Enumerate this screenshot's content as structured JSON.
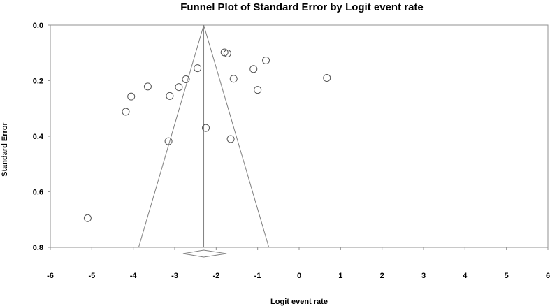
{
  "chart_data": {
    "type": "scatter",
    "title": "Funnel Plot of Standard Error by Logit event rate",
    "xlabel": "Logit event rate",
    "ylabel": "Standard Error",
    "xlim": [
      -6,
      6
    ],
    "ylim": [
      0.0,
      0.8
    ],
    "y_inverted": true,
    "x_ticks": [
      "-6",
      "-5",
      "-4",
      "-3",
      "-2",
      "-1",
      "0",
      "1",
      "2",
      "3",
      "4",
      "5",
      "6"
    ],
    "y_ticks": [
      "0.0",
      "0.2",
      "0.4",
      "0.6",
      "0.8"
    ],
    "grid": false,
    "summary_estimate": -2.3,
    "summary_ci": [
      -2.8,
      -1.75
    ],
    "funnel_bottom": [
      -3.87,
      -0.73
    ],
    "points": [
      {
        "x": -1.8,
        "y": 0.098
      },
      {
        "x": -1.73,
        "y": 0.102
      },
      {
        "x": -0.8,
        "y": 0.127
      },
      {
        "x": -2.45,
        "y": 0.155
      },
      {
        "x": -1.1,
        "y": 0.158
      },
      {
        "x": 0.67,
        "y": 0.19
      },
      {
        "x": -2.73,
        "y": 0.195
      },
      {
        "x": -1.58,
        "y": 0.193
      },
      {
        "x": -3.65,
        "y": 0.221
      },
      {
        "x": -2.9,
        "y": 0.223
      },
      {
        "x": -1.0,
        "y": 0.233
      },
      {
        "x": -4.05,
        "y": 0.257
      },
      {
        "x": -3.12,
        "y": 0.255
      },
      {
        "x": -4.18,
        "y": 0.312
      },
      {
        "x": -2.25,
        "y": 0.37
      },
      {
        "x": -1.65,
        "y": 0.41
      },
      {
        "x": -3.15,
        "y": 0.418
      },
      {
        "x": -5.1,
        "y": 0.695
      }
    ]
  }
}
